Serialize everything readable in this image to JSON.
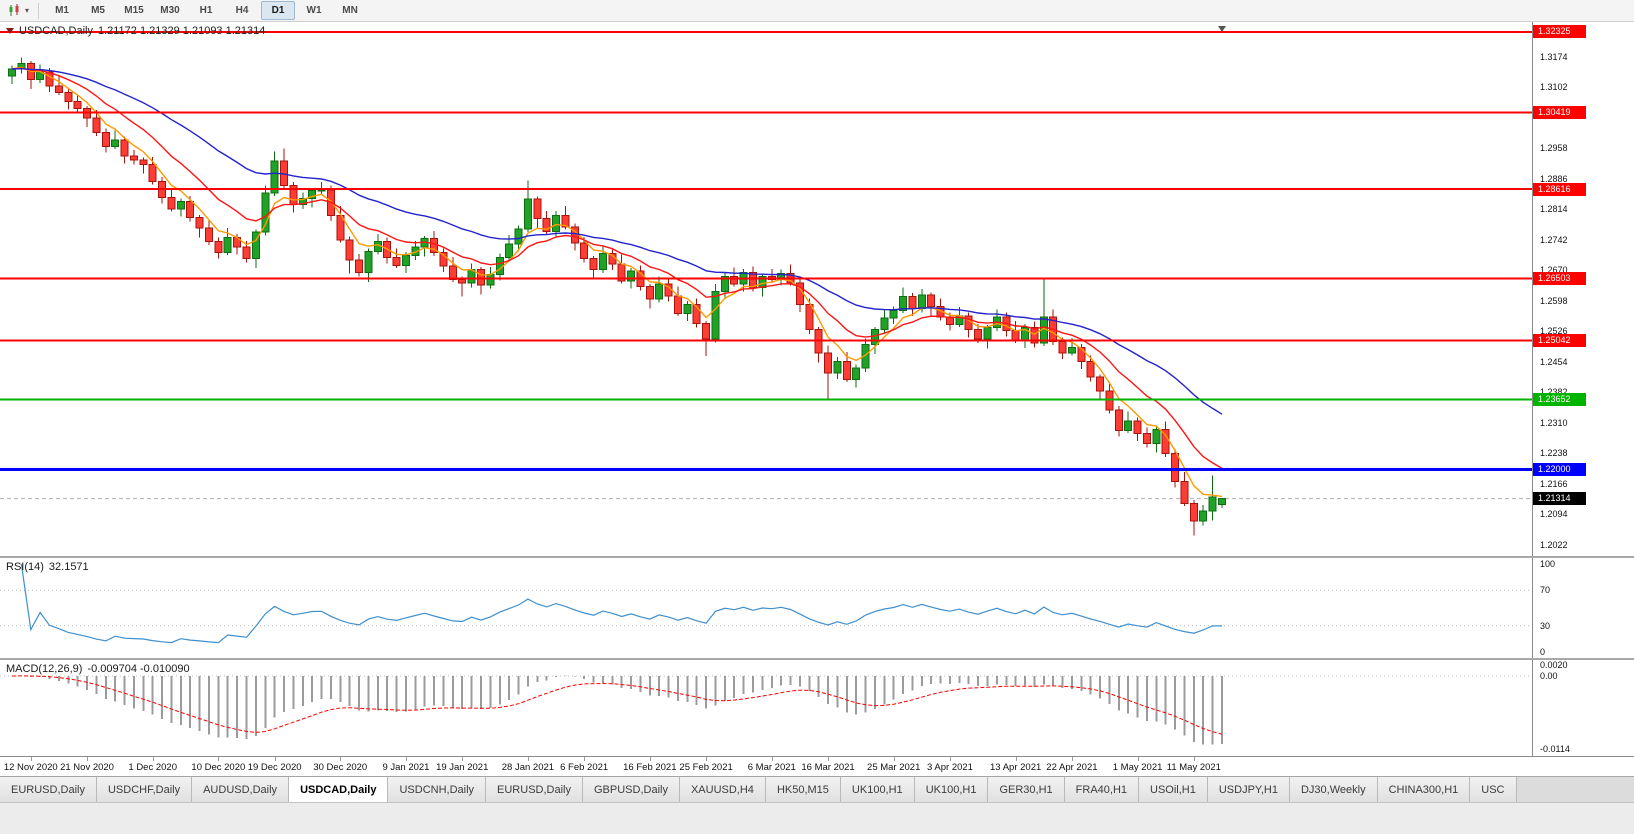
{
  "toolbar": {
    "timeframes": [
      "M1",
      "M5",
      "M15",
      "M30",
      "H1",
      "H4",
      "D1",
      "W1",
      "MN"
    ],
    "active_timeframe": "D1"
  },
  "chart": {
    "title_symbol": "USDCAD,Daily",
    "title_ohlc": "1.21172 1.21329 1.21093 1.21314",
    "open": "1.21172",
    "high": "1.21329",
    "low": "1.21093",
    "close": "1.21314"
  },
  "colors": {
    "bull_fill": "#21a127",
    "bull_stroke": "#0b6e10",
    "bear_fill": "#fb3d35",
    "bear_stroke": "#a8120c",
    "ma_fast": "#ff9900",
    "ma_mid": "#ff1414",
    "ma_slow": "#2323cc",
    "rsi_line": "#3f8fce",
    "macd_hist": "#9b9b9b",
    "macd_signal": "#ff0000",
    "level_red": "#ff0000",
    "level_green": "#00b400",
    "level_blue": "#0000ff",
    "current_flag": "#000000",
    "grid_dotted": "#bdbdbd"
  },
  "price_axis": {
    "ticks": [
      1.3174,
      1.3102,
      1.2958,
      1.2886,
      1.2814,
      1.2742,
      1.267,
      1.2598,
      1.2526,
      1.2454,
      1.2382,
      1.231,
      1.2238,
      1.2166,
      1.2094,
      1.2022
    ],
    "flags": [
      {
        "text": "1.32325",
        "price": 1.32325,
        "color": "#ff0000"
      },
      {
        "text": "1.30419",
        "price": 1.30419,
        "color": "#ff0000"
      },
      {
        "text": "1.28616",
        "price": 1.28616,
        "color": "#ff0000"
      },
      {
        "text": "1.26503",
        "price": 1.26503,
        "color": "#ff0000"
      },
      {
        "text": "1.25042",
        "price": 1.25042,
        "color": "#ff0000"
      },
      {
        "text": "1.23652",
        "price": 1.23652,
        "color": "#00b400"
      },
      {
        "text": "1.22000",
        "price": 1.22,
        "color": "#0000ff"
      },
      {
        "text": "1.21314",
        "price": 1.21314,
        "color": "#000000",
        "current": true
      }
    ]
  },
  "indicators": {
    "rsi": {
      "label": "RSI(14)",
      "value": "32.1571",
      "axis": [
        {
          "text": "100",
          "value": 100
        },
        {
          "text": "70",
          "value": 70
        },
        {
          "text": "30",
          "value": 30
        },
        {
          "text": "0",
          "value": 0
        }
      ],
      "dashed_levels": [
        70,
        30
      ]
    },
    "macd": {
      "label": "MACD(12,26,9)",
      "values": "-0.009704 -0.010090",
      "axis": [
        {
          "text": "0.0020",
          "value": 0.002
        },
        {
          "text": "0.00",
          "value": 0
        },
        {
          "text": "-0.0114",
          "value": -0.0114
        }
      ]
    }
  },
  "chart_data": {
    "type": "candlestick",
    "symbol": "USDCAD",
    "timeframe": "Daily",
    "y_range": [
      1.1996,
      1.3256
    ],
    "levels": [
      {
        "price": 1.32325,
        "color": "#ff0000",
        "width": 2
      },
      {
        "price": 1.30419,
        "color": "#ff0000",
        "width": 2
      },
      {
        "price": 1.28616,
        "color": "#ff0000",
        "width": 2
      },
      {
        "price": 1.26503,
        "color": "#ff0000",
        "width": 2
      },
      {
        "price": 1.25042,
        "color": "#ff0000",
        "width": 2
      },
      {
        "price": 1.23652,
        "color": "#00b400",
        "width": 2
      },
      {
        "price": 1.22,
        "color": "#0000ff",
        "width": 3
      }
    ],
    "current_price": 1.21314,
    "moving_averages": [
      {
        "period": 5,
        "color": "#ff9900"
      },
      {
        "period": 12,
        "color": "#ff1414"
      },
      {
        "period": 30,
        "color": "#2323cc"
      }
    ],
    "rsi": {
      "period": 14,
      "range": [
        0,
        100
      ],
      "levels": [
        70,
        30
      ]
    },
    "macd": {
      "fast": 12,
      "slow": 26,
      "signal": 9,
      "range": [
        -0.0125,
        0.0025
      ]
    },
    "date_labels": [
      {
        "label": "12 Nov 2020",
        "index": 2
      },
      {
        "label": "21 Nov 2020",
        "index": 8
      },
      {
        "label": "1 Dec 2020",
        "index": 15
      },
      {
        "label": "10 Dec 2020",
        "index": 22
      },
      {
        "label": "19 Dec 2020",
        "index": 28
      },
      {
        "label": "30 Dec 2020",
        "index": 35
      },
      {
        "label": "9 Jan 2021",
        "index": 42
      },
      {
        "label": "19 Jan 2021",
        "index": 48
      },
      {
        "label": "28 Jan 2021",
        "index": 55
      },
      {
        "label": "6 Feb 2021",
        "index": 61
      },
      {
        "label": "16 Feb 2021",
        "index": 68
      },
      {
        "label": "25 Feb 2021",
        "index": 74
      },
      {
        "label": "6 Mar 2021",
        "index": 81
      },
      {
        "label": "16 Mar 2021",
        "index": 87
      },
      {
        "label": "25 Mar 2021",
        "index": 94
      },
      {
        "label": "3 Apr 2021",
        "index": 100
      },
      {
        "label": "13 Apr 2021",
        "index": 107
      },
      {
        "label": "22 Apr 2021",
        "index": 113
      },
      {
        "label": "1 May 2021",
        "index": 120
      },
      {
        "label": "11 May 2021",
        "index": 126
      }
    ],
    "candles": [
      [
        1.3128,
        1.3153,
        1.311,
        1.3145
      ],
      [
        1.3145,
        1.3172,
        1.3135,
        1.3158
      ],
      [
        1.3158,
        1.3164,
        1.3098,
        1.312
      ],
      [
        1.312,
        1.3156,
        1.3112,
        1.3138
      ],
      [
        1.3138,
        1.3148,
        1.3091,
        1.3105
      ],
      [
        1.3105,
        1.3127,
        1.3084,
        1.309
      ],
      [
        1.309,
        1.3098,
        1.305,
        1.3068
      ],
      [
        1.3068,
        1.3082,
        1.3042,
        1.3052
      ],
      [
        1.3052,
        1.3058,
        1.3008,
        1.303
      ],
      [
        1.303,
        1.3048,
        1.2987,
        1.2995
      ],
      [
        1.2995,
        1.3005,
        1.2948,
        1.2962
      ],
      [
        1.2962,
        1.3,
        1.2956,
        1.2978
      ],
      [
        1.2978,
        1.2986,
        1.2922,
        1.294
      ],
      [
        1.294,
        1.2954,
        1.292,
        1.293
      ],
      [
        1.293,
        1.2936,
        1.2898,
        1.292
      ],
      [
        1.292,
        1.2938,
        1.2872,
        1.288
      ],
      [
        1.288,
        1.289,
        1.2828,
        1.2842
      ],
      [
        1.2842,
        1.2864,
        1.2809,
        1.2815
      ],
      [
        1.2815,
        1.284,
        1.2797,
        1.2832
      ],
      [
        1.2832,
        1.2846,
        1.2785,
        1.2795
      ],
      [
        1.2795,
        1.2801,
        1.2748,
        1.277
      ],
      [
        1.277,
        1.2788,
        1.273,
        1.2738
      ],
      [
        1.2738,
        1.2748,
        1.2698,
        1.2712
      ],
      [
        1.2712,
        1.277,
        1.2706,
        1.2748
      ],
      [
        1.2748,
        1.2756,
        1.2707,
        1.2725
      ],
      [
        1.2725,
        1.2739,
        1.2688,
        1.2698
      ],
      [
        1.2698,
        1.2766,
        1.2676,
        1.276
      ],
      [
        1.276,
        1.287,
        1.2752,
        1.2852
      ],
      [
        1.2852,
        1.295,
        1.2845,
        1.2928
      ],
      [
        1.2928,
        1.2958,
        1.2862,
        1.287
      ],
      [
        1.287,
        1.2878,
        1.2807,
        1.2825
      ],
      [
        1.2825,
        1.2854,
        1.2815,
        1.284
      ],
      [
        1.284,
        1.2864,
        1.2818,
        1.2858
      ],
      [
        1.2858,
        1.2878,
        1.285,
        1.286
      ],
      [
        1.286,
        1.287,
        1.2786,
        1.28
      ],
      [
        1.28,
        1.2822,
        1.2736,
        1.2742
      ],
      [
        1.2742,
        1.275,
        1.2663,
        1.2695
      ],
      [
        1.2695,
        1.2709,
        1.2655,
        1.2665
      ],
      [
        1.2665,
        1.2721,
        1.2643,
        1.2715
      ],
      [
        1.2715,
        1.2756,
        1.2707,
        1.2738
      ],
      [
        1.2738,
        1.2748,
        1.2686,
        1.27
      ],
      [
        1.27,
        1.2722,
        1.2676,
        1.2682
      ],
      [
        1.2682,
        1.2713,
        1.2664,
        1.2705
      ],
      [
        1.2705,
        1.2739,
        1.2695,
        1.2725
      ],
      [
        1.2725,
        1.2751,
        1.2703,
        1.2745
      ],
      [
        1.2745,
        1.2763,
        1.2704,
        1.2712
      ],
      [
        1.2712,
        1.2722,
        1.2666,
        1.268
      ],
      [
        1.268,
        1.2702,
        1.2642,
        1.2648
      ],
      [
        1.2648,
        1.2656,
        1.2608,
        1.264
      ],
      [
        1.264,
        1.2686,
        1.263,
        1.2672
      ],
      [
        1.2672,
        1.2678,
        1.2613,
        1.2635
      ],
      [
        1.2635,
        1.2678,
        1.2627,
        1.266
      ],
      [
        1.266,
        1.271,
        1.2646,
        1.27
      ],
      [
        1.27,
        1.2754,
        1.2694,
        1.2732
      ],
      [
        1.2732,
        1.2776,
        1.2714,
        1.2768
      ],
      [
        1.2768,
        1.2882,
        1.276,
        1.2838
      ],
      [
        1.2838,
        1.2844,
        1.277,
        1.2792
      ],
      [
        1.2792,
        1.281,
        1.2754,
        1.2762
      ],
      [
        1.2762,
        1.281,
        1.2748,
        1.28
      ],
      [
        1.28,
        1.2822,
        1.2766,
        1.2772
      ],
      [
        1.2772,
        1.278,
        1.2717,
        1.2735
      ],
      [
        1.2735,
        1.2749,
        1.2688,
        1.2698
      ],
      [
        1.2698,
        1.2704,
        1.265,
        1.2672
      ],
      [
        1.2672,
        1.2728,
        1.2664,
        1.271
      ],
      [
        1.271,
        1.272,
        1.2671,
        1.2685
      ],
      [
        1.2685,
        1.2707,
        1.2639,
        1.2645
      ],
      [
        1.2645,
        1.2676,
        1.2627,
        1.2668
      ],
      [
        1.2668,
        1.2682,
        1.2622,
        1.2632
      ],
      [
        1.2632,
        1.2638,
        1.258,
        1.2602
      ],
      [
        1.2602,
        1.2656,
        1.2594,
        1.2638
      ],
      [
        1.2638,
        1.2648,
        1.2596,
        1.261
      ],
      [
        1.261,
        1.2632,
        1.2562,
        1.2568
      ],
      [
        1.2568,
        1.2598,
        1.255,
        1.259
      ],
      [
        1.259,
        1.2604,
        1.2535,
        1.2545
      ],
      [
        1.2545,
        1.2551,
        1.2468,
        1.2508
      ],
      [
        1.2508,
        1.2638,
        1.25,
        1.262
      ],
      [
        1.262,
        1.2665,
        1.2606,
        1.2655
      ],
      [
        1.2655,
        1.2677,
        1.2632,
        1.2638
      ],
      [
        1.2638,
        1.2673,
        1.262,
        1.2665
      ],
      [
        1.2665,
        1.2679,
        1.262,
        1.263
      ],
      [
        1.263,
        1.2661,
        1.2608,
        1.2655
      ],
      [
        1.2655,
        1.2673,
        1.264,
        1.2648
      ],
      [
        1.2648,
        1.2672,
        1.2634,
        1.2662
      ],
      [
        1.2662,
        1.2684,
        1.2634,
        1.264
      ],
      [
        1.264,
        1.2648,
        1.2572,
        1.259
      ],
      [
        1.259,
        1.2604,
        1.252,
        1.253
      ],
      [
        1.253,
        1.2536,
        1.2453,
        1.2475
      ],
      [
        1.2475,
        1.2493,
        1.2366,
        1.2428
      ],
      [
        1.2428,
        1.2465,
        1.2414,
        1.2455
      ],
      [
        1.2455,
        1.2477,
        1.2406,
        1.2412
      ],
      [
        1.2412,
        1.2448,
        1.2394,
        1.244
      ],
      [
        1.244,
        1.2509,
        1.243,
        1.2495
      ],
      [
        1.2495,
        1.2536,
        1.2473,
        1.253
      ],
      [
        1.253,
        1.2576,
        1.2522,
        1.2558
      ],
      [
        1.2558,
        1.2585,
        1.2544,
        1.2575
      ],
      [
        1.2575,
        1.263,
        1.2569,
        1.2608
      ],
      [
        1.2608,
        1.2616,
        1.2562,
        1.258
      ],
      [
        1.258,
        1.2626,
        1.257,
        1.2612
      ],
      [
        1.2612,
        1.2618,
        1.2563,
        1.2585
      ],
      [
        1.2585,
        1.2603,
        1.2552,
        1.256
      ],
      [
        1.256,
        1.257,
        1.2528,
        1.2542
      ],
      [
        1.2542,
        1.2584,
        1.2536,
        1.2562
      ],
      [
        1.2562,
        1.257,
        1.2512,
        1.253
      ],
      [
        1.253,
        1.2544,
        1.2498,
        1.2508
      ],
      [
        1.2508,
        1.2541,
        1.2486,
        1.2535
      ],
      [
        1.2535,
        1.2578,
        1.2527,
        1.256
      ],
      [
        1.256,
        1.257,
        1.2514,
        1.2528
      ],
      [
        1.2528,
        1.255,
        1.2499,
        1.2505
      ],
      [
        1.2505,
        1.2543,
        1.2487,
        1.2535
      ],
      [
        1.2535,
        1.2549,
        1.2488,
        1.2498
      ],
      [
        1.2498,
        1.2652,
        1.2492,
        1.256
      ],
      [
        1.256,
        1.2578,
        1.2494,
        1.2502
      ],
      [
        1.2502,
        1.2512,
        1.2461,
        1.2475
      ],
      [
        1.2475,
        1.251,
        1.2469,
        1.2488
      ],
      [
        1.2488,
        1.2496,
        1.2437,
        1.2455
      ],
      [
        1.2455,
        1.2469,
        1.2408,
        1.2418
      ],
      [
        1.2418,
        1.2424,
        1.2363,
        1.2385
      ],
      [
        1.2385,
        1.2403,
        1.2332,
        1.234
      ],
      [
        1.234,
        1.235,
        1.2278,
        1.2292
      ],
      [
        1.2292,
        1.2337,
        1.2286,
        1.2315
      ],
      [
        1.2315,
        1.2323,
        1.2267,
        1.2285
      ],
      [
        1.2285,
        1.2299,
        1.2252,
        1.2262
      ],
      [
        1.2262,
        1.2301,
        1.224,
        1.2295
      ],
      [
        1.2295,
        1.2313,
        1.223,
        1.2238
      ],
      [
        1.2238,
        1.2248,
        1.2158,
        1.2172
      ],
      [
        1.2172,
        1.2194,
        1.2114,
        1.212
      ],
      [
        1.212,
        1.2128,
        1.2044,
        1.2078
      ],
      [
        1.2078,
        1.2116,
        1.2068,
        1.2102
      ],
      [
        1.2102,
        1.2186,
        1.208,
        1.2135
      ],
      [
        1.21172,
        1.21329,
        1.21093,
        1.21314
      ]
    ]
  },
  "tabs": {
    "active_index": 3,
    "items": [
      "EURUSD,Daily",
      "USDCHF,Daily",
      "AUDUSD,Daily",
      "USDCAD,Daily",
      "USDCNH,Daily",
      "EURUSD,Daily",
      "GBPUSD,Daily",
      "XAUUSD,H4",
      "HK50,M15",
      "UK100,H1",
      "UK100,H1",
      "GER30,H1",
      "FRA40,H1",
      "USOil,H1",
      "USDJPY,H1",
      "DJ30,Weekly",
      "CHINA300,H1",
      "USC"
    ]
  }
}
